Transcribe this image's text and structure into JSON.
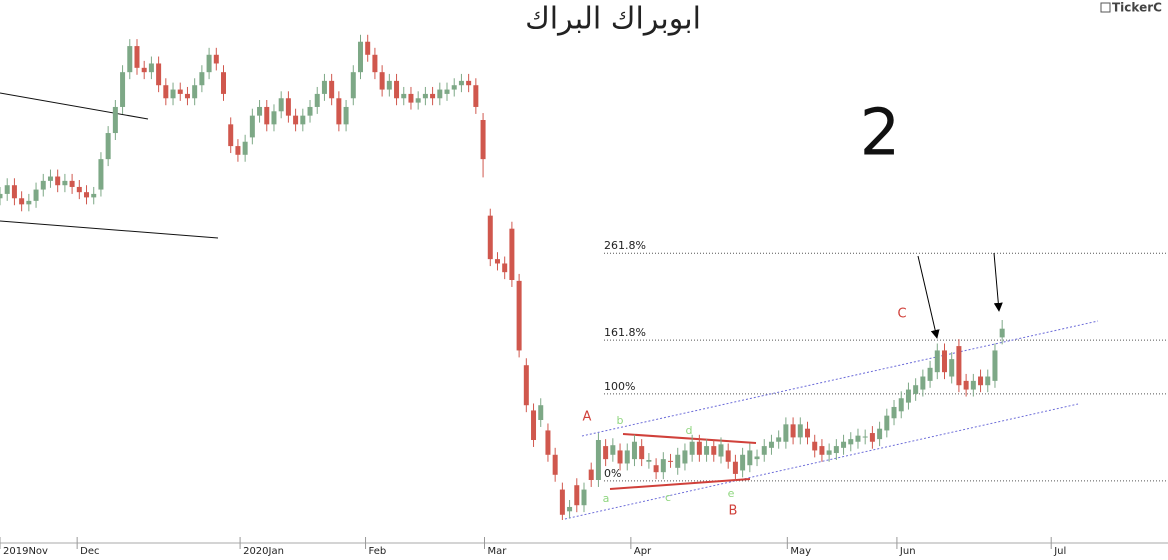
{
  "chart_data": {
    "type": "candlestick",
    "title": "ابوبراك البراك",
    "brand": "TickerC",
    "big_label": "2",
    "up_color": "#7da886",
    "down_color": "#d0574d",
    "xlim": [
      0,
      162
    ],
    "ylim": [
      -68,
      553
    ],
    "xticks": [
      {
        "value": 0,
        "label": "2019Nov"
      },
      {
        "value": 10.7,
        "label": "Dec"
      },
      {
        "value": 33.3,
        "label": "2020Jan"
      },
      {
        "value": 50.7,
        "label": "Feb"
      },
      {
        "value": 67.2,
        "label": "Mar"
      },
      {
        "value": 87.5,
        "label": "Apr"
      },
      {
        "value": 109.2,
        "label": "May"
      },
      {
        "value": 124.4,
        "label": "Jun"
      },
      {
        "value": 145.8,
        "label": "Jul"
      }
    ],
    "fib_levels": [
      {
        "value": 0,
        "label": "0%"
      },
      {
        "value": 100,
        "label": "100%"
      },
      {
        "value": 161.8,
        "label": "161.8%"
      },
      {
        "value": 261.8,
        "label": "261.8%"
      }
    ],
    "wave_labels": [
      "A",
      "B",
      "C",
      "a",
      "b",
      "c",
      "d",
      "e"
    ],
    "open": [
      325,
      330,
      340,
      325,
      318,
      322,
      335,
      345,
      350,
      340,
      345,
      338,
      332,
      326,
      335,
      370,
      400,
      430,
      470,
      500,
      475,
      470,
      480,
      455,
      440,
      450,
      445,
      440,
      455,
      470,
      490,
      470,
      410,
      385,
      375,
      395,
      420,
      430,
      410,
      425,
      440,
      420,
      410,
      420,
      430,
      445,
      460,
      440,
      410,
      440,
      470,
      505,
      490,
      470,
      450,
      460,
      440,
      445,
      435,
      440,
      445,
      440,
      445,
      450,
      455,
      460,
      455,
      415,
      305,
      255,
      250,
      290,
      230,
      133,
      81,
      70,
      58,
      30,
      -10,
      -35,
      -5,
      -28,
      13,
      1,
      40,
      30,
      35,
      20,
      25,
      40,
      22,
      18,
      10,
      23,
      15,
      20,
      30,
      45,
      30,
      40,
      28,
      35,
      22,
      12,
      18,
      25,
      30,
      38,
      45,
      45,
      65,
      50,
      60,
      45,
      40,
      30,
      32,
      38,
      42,
      45,
      50,
      55,
      48,
      58,
      72,
      80,
      90,
      100,
      105,
      115,
      125,
      150,
      120,
      155,
      115,
      105,
      120,
      110,
      115,
      165
    ],
    "high": [
      338,
      348,
      348,
      333,
      330,
      343,
      353,
      358,
      358,
      353,
      353,
      346,
      340,
      338,
      378,
      408,
      438,
      478,
      508,
      508,
      483,
      488,
      488,
      463,
      458,
      458,
      453,
      463,
      478,
      498,
      498,
      478,
      418,
      393,
      398,
      428,
      438,
      438,
      433,
      448,
      448,
      428,
      428,
      438,
      453,
      468,
      468,
      448,
      438,
      478,
      513,
      513,
      498,
      478,
      468,
      468,
      453,
      453,
      448,
      453,
      453,
      458,
      458,
      463,
      468,
      468,
      463,
      423,
      313,
      263,
      258,
      298,
      238,
      141,
      89,
      95,
      66,
      38,
      -2,
      -22,
      3,
      -2,
      21,
      55,
      48,
      49,
      43,
      43,
      53,
      48,
      32,
      26,
      33,
      31,
      38,
      43,
      53,
      53,
      48,
      48,
      50,
      43,
      30,
      38,
      43,
      36,
      48,
      53,
      58,
      73,
      73,
      73,
      68,
      53,
      48,
      43,
      48,
      53,
      56,
      60,
      59,
      63,
      68,
      83,
      93,
      103,
      113,
      118,
      128,
      138,
      158,
      158,
      148,
      163,
      123,
      123,
      128,
      128,
      158,
      185
    ],
    "low": [
      317,
      322,
      317,
      310,
      310,
      314,
      327,
      337,
      332,
      332,
      330,
      324,
      318,
      318,
      327,
      362,
      392,
      422,
      462,
      467,
      462,
      462,
      447,
      432,
      432,
      437,
      432,
      432,
      447,
      462,
      472,
      437,
      377,
      367,
      367,
      387,
      412,
      402,
      402,
      417,
      412,
      402,
      402,
      412,
      422,
      437,
      432,
      402,
      402,
      432,
      462,
      482,
      462,
      442,
      442,
      432,
      432,
      427,
      427,
      432,
      432,
      432,
      437,
      442,
      447,
      447,
      422,
      349,
      247,
      242,
      232,
      223,
      142,
      79,
      39,
      62,
      22,
      -1,
      -45,
      -43,
      -36,
      -36,
      -7,
      -7,
      17,
      22,
      12,
      12,
      17,
      17,
      14,
      2,
      2,
      15,
      7,
      12,
      22,
      22,
      22,
      22,
      20,
      14,
      0,
      4,
      10,
      17,
      22,
      30,
      37,
      37,
      42,
      42,
      42,
      27,
      22,
      22,
      24,
      30,
      34,
      37,
      42,
      37,
      40,
      50,
      64,
      72,
      82,
      92,
      97,
      107,
      117,
      117,
      112,
      102,
      97,
      97,
      102,
      102,
      107,
      157
    ],
    "close": [
      330,
      340,
      325,
      318,
      322,
      335,
      345,
      350,
      340,
      345,
      338,
      332,
      326,
      330,
      370,
      400,
      430,
      470,
      500,
      475,
      470,
      480,
      455,
      440,
      450,
      445,
      440,
      455,
      470,
      490,
      480,
      445,
      385,
      375,
      390,
      420,
      430,
      410,
      425,
      440,
      420,
      410,
      420,
      430,
      445,
      460,
      440,
      410,
      430,
      470,
      505,
      490,
      470,
      450,
      460,
      440,
      445,
      435,
      440,
      445,
      440,
      450,
      450,
      455,
      460,
      455,
      430,
      370,
      255,
      250,
      240,
      231,
      150,
      87,
      47,
      87,
      30,
      7,
      -39,
      -30,
      -28,
      -10,
      1,
      47,
      25,
      41,
      20,
      35,
      45,
      25,
      24,
      10,
      25,
      22,
      30,
      35,
      45,
      30,
      40,
      30,
      42,
      22,
      8,
      30,
      35,
      28,
      40,
      45,
      50,
      65,
      50,
      65,
      50,
      35,
      30,
      35,
      40,
      45,
      48,
      52,
      51,
      45,
      60,
      75,
      85,
      95,
      105,
      110,
      120,
      130,
      150,
      125,
      140,
      110,
      105,
      115,
      110,
      120,
      150,
      175
    ]
  }
}
